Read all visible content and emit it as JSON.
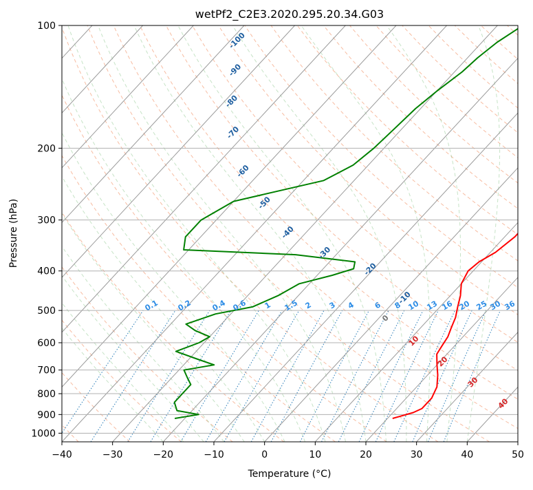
{
  "chart_data": {
    "type": "line",
    "title": "wetPf2_C2E3.2020.295.20.34.G03",
    "xlabel": "Temperature (°C)",
    "ylabel": "Pressure (hPa)",
    "xlim": [
      -40,
      50
    ],
    "ylim": [
      1050,
      100
    ],
    "y_scale": "log",
    "grid": true,
    "x_ticks": [
      -40,
      -30,
      -20,
      -10,
      0,
      10,
      20,
      30,
      40,
      50
    ],
    "y_ticks": [
      1000,
      900,
      800,
      700,
      600,
      500,
      400,
      300,
      200,
      100
    ],
    "skew_t": true,
    "series": [
      {
        "color": "#ff0000",
        "points": [
          [
            6.5,
            100
          ],
          [
            7.5,
            110
          ],
          [
            7,
            120
          ],
          [
            6.5,
            130
          ],
          [
            7,
            145
          ],
          [
            6.5,
            160
          ],
          [
            6.5,
            180
          ],
          [
            7.5,
            200
          ],
          [
            8.5,
            220
          ],
          [
            9.5,
            240
          ],
          [
            11,
            260
          ],
          [
            12,
            280
          ],
          [
            12,
            300
          ],
          [
            12,
            330
          ],
          [
            11,
            360
          ],
          [
            9.5,
            380
          ],
          [
            9,
            400
          ],
          [
            10,
            430
          ],
          [
            12,
            460
          ],
          [
            13.5,
            490
          ],
          [
            15,
            520
          ],
          [
            16,
            550
          ],
          [
            17,
            580
          ],
          [
            17.5,
            610
          ],
          [
            18,
            640
          ],
          [
            20,
            680
          ],
          [
            22,
            720
          ],
          [
            24,
            770
          ],
          [
            25,
            820
          ],
          [
            25,
            870
          ],
          [
            24,
            890
          ],
          [
            22,
            910
          ],
          [
            21,
            920
          ]
        ]
      },
      {
        "color": "#008000",
        "points": [
          [
            -25,
            100
          ],
          [
            -27,
            110
          ],
          [
            -28,
            120
          ],
          [
            -28.5,
            130
          ],
          [
            -30,
            145
          ],
          [
            -31,
            160
          ],
          [
            -31.5,
            180
          ],
          [
            -32,
            200
          ],
          [
            -33,
            220
          ],
          [
            -36,
            240
          ],
          [
            -50,
            270
          ],
          [
            -53,
            300
          ],
          [
            -53,
            330
          ],
          [
            -51,
            355
          ],
          [
            -28,
            365
          ],
          [
            -15,
            380
          ],
          [
            -14,
            395
          ],
          [
            -17,
            410
          ],
          [
            -22,
            430
          ],
          [
            -24,
            460
          ],
          [
            -27,
            490
          ],
          [
            -33,
            510
          ],
          [
            -37,
            540
          ],
          [
            -34,
            560
          ],
          [
            -30,
            580
          ],
          [
            -31,
            600
          ],
          [
            -34,
            630
          ],
          [
            -28,
            660
          ],
          [
            -24,
            680
          ],
          [
            -29,
            700
          ],
          [
            -27,
            730
          ],
          [
            -25,
            760
          ],
          [
            -25,
            800
          ],
          [
            -25,
            840
          ],
          [
            -23,
            880
          ],
          [
            -18,
            900
          ],
          [
            -20,
            910
          ],
          [
            -22,
            920
          ]
        ]
      }
    ],
    "dry_adiabat_labels": [
      "-100",
      "-90",
      "-80",
      "-70",
      "-60",
      "-50",
      "-40",
      "-30",
      "-20",
      "-10"
    ],
    "mixing_ratio_labels": [
      "0.1",
      "0.2",
      "0.4",
      "0.6",
      "1",
      "1.5",
      "2",
      "3",
      "4",
      "6",
      "8",
      "10",
      "13",
      "16",
      "20",
      "25",
      "30",
      "36"
    ],
    "moist_adiabat_labels": [
      "0",
      "10",
      "20",
      "30",
      "40"
    ]
  }
}
